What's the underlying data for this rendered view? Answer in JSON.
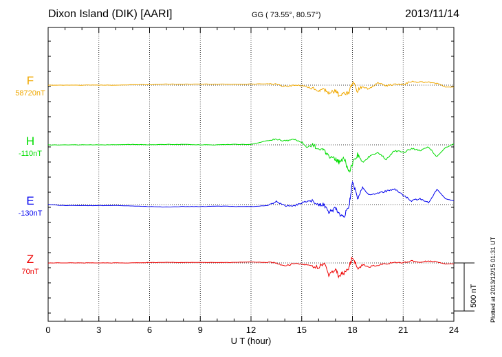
{
  "header": {
    "station": "Dixon Island (DIK)  [AARI]",
    "coords": "GG ( 73.55°,  80.57°)",
    "date": "2013/11/14"
  },
  "plotted_note": "Plotted at 2013/12/15 01:31  UT",
  "scale_bar": {
    "label": "500 nT",
    "value_nT": 500
  },
  "colors": {
    "F": "#f0a800",
    "H": "#00dd00",
    "E": "#0000ee",
    "Z": "#ee0000"
  },
  "components": [
    {
      "name": "F",
      "baseline": "58720nT",
      "color": "#f0a800"
    },
    {
      "name": "H",
      "baseline": "-110nT",
      "color": "#00dd00"
    },
    {
      "name": "E",
      "baseline": "-130nT",
      "color": "#0000ee"
    },
    {
      "name": "Z",
      "baseline": "70nT",
      "color": "#ee0000"
    }
  ],
  "chart_data": {
    "type": "line",
    "xlabel": "U T (hour)",
    "xlim": [
      0,
      24
    ],
    "xticks": [
      "0",
      "3",
      "6",
      "9",
      "12",
      "15",
      "18",
      "21",
      "24"
    ],
    "grid": true,
    "units": "nT (deviation from baseline)",
    "series": [
      {
        "name": "F",
        "x": [
          0,
          1,
          2,
          3,
          4,
          5,
          6,
          7,
          8,
          9,
          10,
          11,
          12,
          13,
          13.5,
          14,
          14.5,
          15,
          15.5,
          16,
          16.3,
          16.6,
          17,
          17.2,
          17.5,
          17.8,
          18,
          18.3,
          18.6,
          19,
          19.5,
          20,
          20.5,
          21,
          21.5,
          22,
          22.5,
          23,
          23.5,
          24
        ],
        "values": [
          0,
          0,
          0,
          0,
          0,
          5,
          5,
          10,
          10,
          10,
          10,
          10,
          10,
          15,
          10,
          -15,
          0,
          -5,
          -30,
          -60,
          -50,
          -80,
          -60,
          -100,
          -90,
          -80,
          30,
          -60,
          -20,
          -40,
          20,
          -5,
          10,
          5,
          40,
          30,
          30,
          20,
          -20,
          -20
        ]
      },
      {
        "name": "H",
        "x": [
          0,
          1,
          2,
          3,
          4,
          5,
          6,
          7,
          8,
          9,
          10,
          11,
          12,
          12.5,
          13,
          13.5,
          14,
          14.5,
          15,
          15.3,
          15.7,
          16,
          16.3,
          16.6,
          17,
          17.2,
          17.5,
          17.8,
          18,
          18.3,
          18.6,
          19,
          19.5,
          20,
          20.5,
          21,
          21.5,
          22,
          22.5,
          23,
          23.5,
          24
        ],
        "values": [
          0,
          0,
          0,
          0,
          0,
          5,
          0,
          5,
          5,
          0,
          0,
          5,
          5,
          25,
          45,
          60,
          40,
          55,
          30,
          -20,
          0,
          -50,
          -40,
          -130,
          -150,
          -180,
          -140,
          -280,
          -200,
          -100,
          -180,
          -120,
          -80,
          -150,
          -60,
          -80,
          -40,
          -60,
          -20,
          -120,
          -30,
          10
        ]
      },
      {
        "name": "E",
        "x": [
          0,
          1,
          2,
          3,
          4,
          5,
          6,
          7,
          8,
          9,
          10,
          11,
          12,
          13,
          13.5,
          14,
          14.5,
          15,
          15.5,
          16,
          16.3,
          16.6,
          17,
          17.2,
          17.5,
          17.8,
          18,
          18.3,
          18.6,
          19,
          19.5,
          20,
          20.5,
          21,
          21.5,
          22,
          22.5,
          23,
          23.5,
          24
        ],
        "values": [
          0,
          -10,
          -10,
          -10,
          -10,
          -15,
          -20,
          -25,
          -20,
          -20,
          -15,
          -20,
          -20,
          -10,
          30,
          -10,
          -15,
          20,
          40,
          10,
          0,
          -80,
          -40,
          -100,
          -120,
          -20,
          240,
          60,
          180,
          100,
          120,
          140,
          160,
          100,
          40,
          60,
          20,
          160,
          60,
          40
        ]
      },
      {
        "name": "Z",
        "x": [
          0,
          1,
          2,
          3,
          4,
          5,
          6,
          7,
          8,
          9,
          10,
          11,
          12,
          13,
          13.5,
          14,
          14.5,
          15,
          15.5,
          16,
          16.3,
          16.6,
          17,
          17.2,
          17.5,
          17.8,
          18,
          18.3,
          18.6,
          19,
          19.5,
          20,
          20.5,
          21,
          21.5,
          22,
          22.5,
          23,
          23.5,
          24
        ],
        "values": [
          0,
          0,
          0,
          0,
          0,
          0,
          5,
          5,
          5,
          5,
          5,
          5,
          10,
          5,
          0,
          -30,
          -10,
          -15,
          -30,
          -40,
          0,
          -120,
          -60,
          -140,
          -100,
          -40,
          60,
          -50,
          -20,
          -40,
          -20,
          -10,
          10,
          0,
          20,
          10,
          20,
          10,
          -10,
          -10
        ]
      }
    ]
  }
}
